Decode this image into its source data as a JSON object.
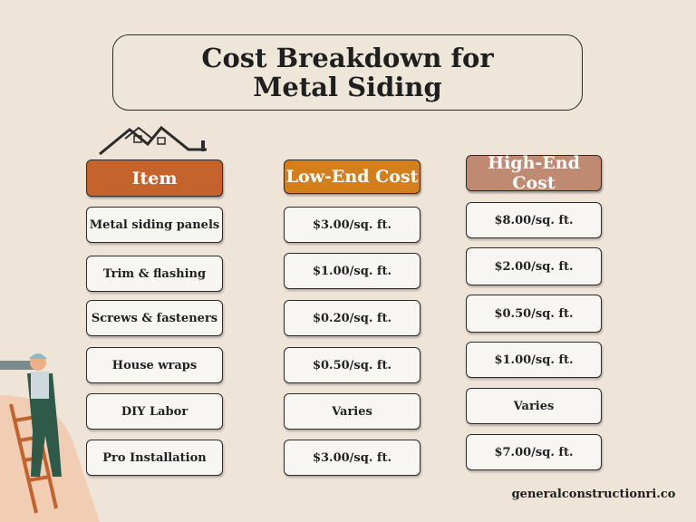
{
  "title": "Cost Breakdown for Metal Siding",
  "table": {
    "headers": [
      "Item",
      "Low-End Cost",
      "High-End Cost"
    ],
    "rows": [
      [
        "Metal siding panels",
        "$3.00/sq. ft.",
        "$8.00/sq. ft."
      ],
      [
        "Trim & flashing",
        "$1.00/sq. ft.",
        "$2.00/sq. ft."
      ],
      [
        "Screws & fasteners",
        "$0.20/sq. ft.",
        "$0.50/sq. ft."
      ],
      [
        "House wraps",
        "$0.50/sq. ft.",
        "$1.00/sq. ft."
      ],
      [
        "DIY Labor",
        "Varies",
        "Varies"
      ],
      [
        "Pro Installation",
        "$3.00/sq. ft.",
        "$7.00/sq. ft."
      ]
    ]
  },
  "footer": "generalconstructionri.co"
}
